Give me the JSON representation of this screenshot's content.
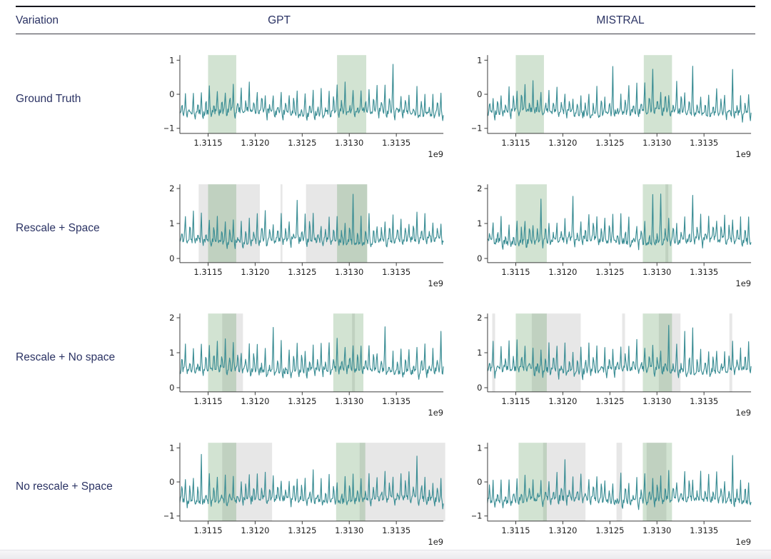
{
  "header": {
    "variation_label": "Variation",
    "columns": [
      "GPT",
      "MISTRAL"
    ]
  },
  "rows": [
    {
      "label": "Ground Truth"
    },
    {
      "label": "Rescale + Space"
    },
    {
      "label": "Rescale + No space"
    },
    {
      "label": "No rescale + Space"
    }
  ],
  "colors": {
    "line": "#3a8d94",
    "band_green": "rgba(90,150,90,0.27)",
    "band_gray": "rgba(120,120,120,0.18)",
    "axis": "#3c3c3c",
    "tick_text": "#1f1f1f",
    "header_text": "#2b3364",
    "top_rule": "#15151c",
    "mid_rule": "#3c3c46"
  },
  "chart_data": [
    {
      "type": "line",
      "row": "Ground Truth",
      "model": "GPT",
      "x_axis": {
        "lim": [
          1.3112,
          1.314
        ],
        "ticks": [
          1.3115,
          1.312,
          1.3125,
          1.313,
          1.3135
        ],
        "offset_label": "1e9",
        "unit_scale": 1000000000
      },
      "y_axis": {
        "lim": [
          -1.15,
          1.15
        ],
        "ticks": [
          -1,
          0,
          1
        ]
      },
      "bands": [
        {
          "kind": "green",
          "x0": 1.3115,
          "x1": 1.3118
        },
        {
          "kind": "green",
          "x0": 1.31287,
          "x1": 1.31318
        }
      ],
      "series": {
        "generator": "spiky-periodic",
        "seed": 11,
        "n": 430,
        "cycles": 33,
        "y_offset": 0
      }
    },
    {
      "type": "line",
      "row": "Ground Truth",
      "model": "MISTRAL",
      "x_axis": {
        "lim": [
          1.3112,
          1.314
        ],
        "ticks": [
          1.3115,
          1.312,
          1.3125,
          1.313,
          1.3135
        ],
        "offset_label": "1e9",
        "unit_scale": 1000000000
      },
      "y_axis": {
        "lim": [
          -1.15,
          1.15
        ],
        "ticks": [
          -1,
          0,
          1
        ]
      },
      "bands": [
        {
          "kind": "green",
          "x0": 1.3115,
          "x1": 1.3118
        },
        {
          "kind": "green",
          "x0": 1.31286,
          "x1": 1.31316
        }
      ],
      "series": {
        "generator": "spiky-periodic",
        "seed": 12,
        "n": 430,
        "cycles": 33,
        "y_offset": 0
      }
    },
    {
      "type": "line",
      "row": "Rescale + Space",
      "model": "GPT",
      "x_axis": {
        "lim": [
          1.3112,
          1.314
        ],
        "ticks": [
          1.3115,
          1.312,
          1.3125,
          1.313,
          1.3135
        ],
        "offset_label": "1e9",
        "unit_scale": 1000000000
      },
      "y_axis": {
        "lim": [
          -0.12,
          2.12
        ],
        "ticks": [
          0,
          1,
          2
        ]
      },
      "bands": [
        {
          "kind": "gray",
          "x0": 1.3114,
          "x1": 1.31205
        },
        {
          "kind": "green",
          "x0": 1.3115,
          "x1": 1.3118
        },
        {
          "kind": "gray",
          "x0": 1.31227,
          "x1": 1.31229
        },
        {
          "kind": "gray",
          "x0": 1.31254,
          "x1": 1.31319
        },
        {
          "kind": "green",
          "x0": 1.31287,
          "x1": 1.31319
        }
      ],
      "series": {
        "generator": "spiky-periodic",
        "seed": 21,
        "n": 430,
        "cycles": 33,
        "y_offset": 1.03
      }
    },
    {
      "type": "line",
      "row": "Rescale + Space",
      "model": "MISTRAL",
      "x_axis": {
        "lim": [
          1.3112,
          1.314
        ],
        "ticks": [
          1.3115,
          1.312,
          1.3125,
          1.313,
          1.3135
        ],
        "offset_label": "1e9",
        "unit_scale": 1000000000
      },
      "y_axis": {
        "lim": [
          -0.12,
          2.12
        ],
        "ticks": [
          0,
          1,
          2
        ]
      },
      "bands": [
        {
          "kind": "green",
          "x0": 1.3115,
          "x1": 1.31183
        },
        {
          "kind": "green",
          "x0": 1.31285,
          "x1": 1.31316
        },
        {
          "kind": "gray",
          "x0": 1.31309,
          "x1": 1.31312
        }
      ],
      "series": {
        "generator": "spiky-periodic",
        "seed": 22,
        "n": 430,
        "cycles": 33,
        "y_offset": 1.03
      }
    },
    {
      "type": "line",
      "row": "Rescale + No space",
      "model": "GPT",
      "x_axis": {
        "lim": [
          1.3112,
          1.314
        ],
        "ticks": [
          1.3115,
          1.312,
          1.3125,
          1.313,
          1.3135
        ],
        "offset_label": "1e9",
        "unit_scale": 1000000000
      },
      "y_axis": {
        "lim": [
          -0.12,
          2.12
        ],
        "ticks": [
          0,
          1,
          2
        ]
      },
      "bands": [
        {
          "kind": "green",
          "x0": 1.3115,
          "x1": 1.3118
        },
        {
          "kind": "gray",
          "x0": 1.31165,
          "x1": 1.31187
        },
        {
          "kind": "green",
          "x0": 1.31283,
          "x1": 1.31315
        },
        {
          "kind": "gray",
          "x0": 1.31303,
          "x1": 1.31306
        }
      ],
      "series": {
        "generator": "spiky-periodic",
        "seed": 31,
        "n": 430,
        "cycles": 33,
        "y_offset": 1.03
      }
    },
    {
      "type": "line",
      "row": "Rescale + No space",
      "model": "MISTRAL",
      "x_axis": {
        "lim": [
          1.3112,
          1.314
        ],
        "ticks": [
          1.3115,
          1.312,
          1.3125,
          1.313,
          1.3135
        ],
        "offset_label": "1e9",
        "unit_scale": 1000000000
      },
      "y_axis": {
        "lim": [
          -0.12,
          2.12
        ],
        "ticks": [
          0,
          1,
          2
        ]
      },
      "bands": [
        {
          "kind": "gray",
          "x0": 1.31125,
          "x1": 1.31128
        },
        {
          "kind": "green",
          "x0": 1.3115,
          "x1": 1.31183
        },
        {
          "kind": "gray",
          "x0": 1.31167,
          "x1": 1.31219
        },
        {
          "kind": "gray",
          "x0": 1.31263,
          "x1": 1.31266
        },
        {
          "kind": "green",
          "x0": 1.31285,
          "x1": 1.31316
        },
        {
          "kind": "gray",
          "x0": 1.31302,
          "x1": 1.31325
        },
        {
          "kind": "gray",
          "x0": 1.31377,
          "x1": 1.3138
        }
      ],
      "series": {
        "generator": "spiky-periodic",
        "seed": 32,
        "n": 430,
        "cycles": 33,
        "y_offset": 1.03
      }
    },
    {
      "type": "line",
      "row": "No rescale + Space",
      "model": "GPT",
      "x_axis": {
        "lim": [
          1.3112,
          1.314
        ],
        "ticks": [
          1.3115,
          1.312,
          1.3125,
          1.313,
          1.3135
        ],
        "offset_label": "1e9",
        "unit_scale": 1000000000
      },
      "y_axis": {
        "lim": [
          -1.15,
          1.15
        ],
        "ticks": [
          -1,
          0,
          1
        ]
      },
      "bands": [
        {
          "kind": "green",
          "x0": 1.3115,
          "x1": 1.3118
        },
        {
          "kind": "gray",
          "x0": 1.31165,
          "x1": 1.31218
        },
        {
          "kind": "green",
          "x0": 1.31286,
          "x1": 1.31317
        },
        {
          "kind": "gray",
          "x0": 1.31311,
          "x1": 1.31402
        }
      ],
      "series": {
        "generator": "spiky-periodic",
        "seed": 41,
        "n": 430,
        "cycles": 33,
        "y_offset": 0
      }
    },
    {
      "type": "line",
      "row": "No rescale + Space",
      "model": "MISTRAL",
      "x_axis": {
        "lim": [
          1.3112,
          1.314
        ],
        "ticks": [
          1.3115,
          1.312,
          1.3125,
          1.313,
          1.3135
        ],
        "offset_label": "1e9",
        "unit_scale": 1000000000
      },
      "y_axis": {
        "lim": [
          -1.15,
          1.15
        ],
        "ticks": [
          -1,
          0,
          1
        ]
      },
      "bands": [
        {
          "kind": "green",
          "x0": 1.31153,
          "x1": 1.31183
        },
        {
          "kind": "gray",
          "x0": 1.31179,
          "x1": 1.31224
        },
        {
          "kind": "gray",
          "x0": 1.31257,
          "x1": 1.31263
        },
        {
          "kind": "green",
          "x0": 1.31285,
          "x1": 1.31316
        },
        {
          "kind": "gray",
          "x0": 1.31289,
          "x1": 1.3131
        }
      ],
      "series": {
        "generator": "spiky-periodic",
        "seed": 42,
        "n": 430,
        "cycles": 33,
        "y_offset": 0
      }
    }
  ]
}
